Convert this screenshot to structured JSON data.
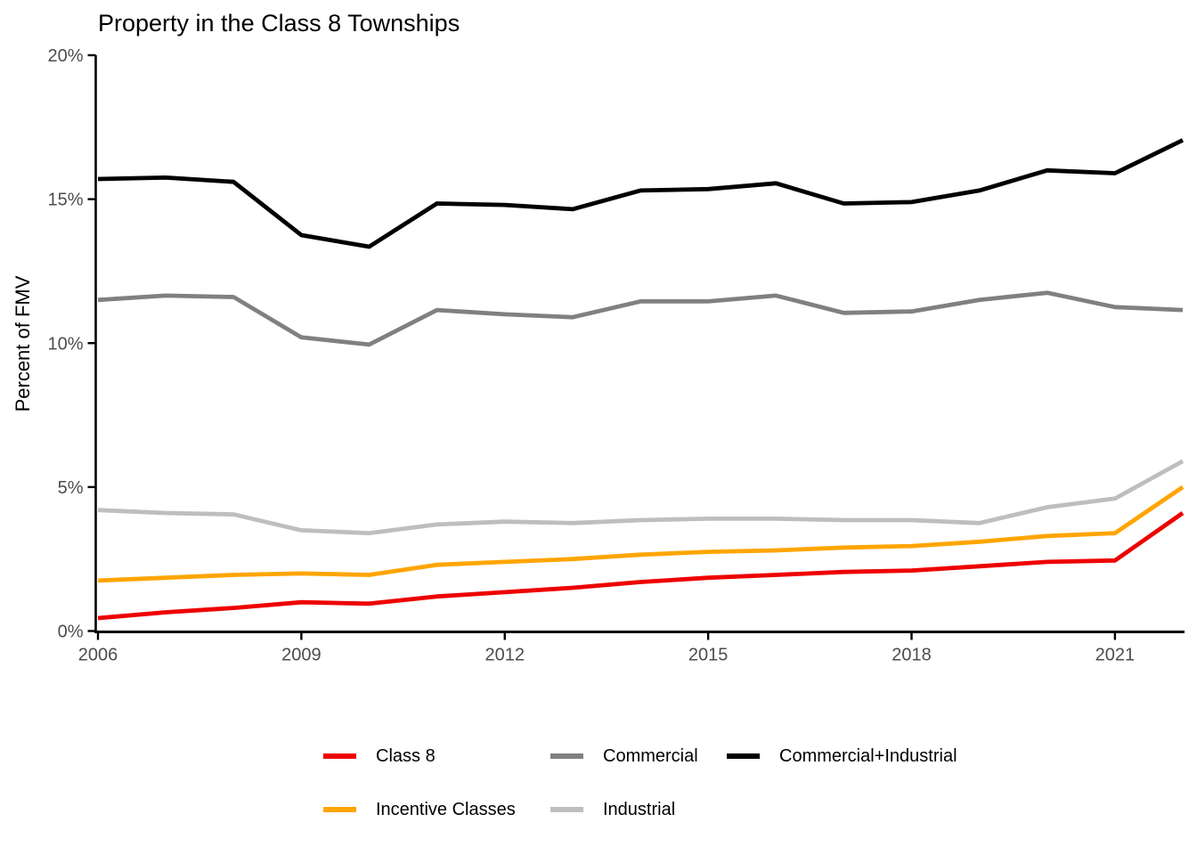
{
  "page": {
    "background": "#ffffff"
  },
  "chart_data": {
    "type": "line",
    "title": "Property in the Class 8 Townships",
    "ylabel": "Percent of FMV",
    "xlabel": "",
    "grid": false,
    "legend_position": "bottom",
    "axis_color": "#000000",
    "tick_label_color": "#4d4d4d",
    "ylim": [
      0,
      20
    ],
    "x": [
      2006,
      2007,
      2008,
      2009,
      2010,
      2011,
      2012,
      2013,
      2014,
      2015,
      2016,
      2017,
      2018,
      2019,
      2020,
      2021,
      2022
    ],
    "y_ticks": {
      "values": [
        0,
        5,
        10,
        15,
        20
      ],
      "labels": [
        "0%",
        "5%",
        "10%",
        "15%",
        "20%"
      ]
    },
    "x_ticks": {
      "values": [
        2006,
        2009,
        2012,
        2015,
        2018,
        2021
      ],
      "labels": [
        "2006",
        "2009",
        "2012",
        "2015",
        "2018",
        "2021"
      ]
    },
    "series": [
      {
        "name": "Class 8",
        "color": "#ee0000",
        "values": [
          0.45,
          0.65,
          0.8,
          1.0,
          0.95,
          1.2,
          1.35,
          1.5,
          1.7,
          1.85,
          1.95,
          2.05,
          2.1,
          2.25,
          2.4,
          2.45,
          4.1
        ]
      },
      {
        "name": "Incentive Classes",
        "color": "#ffa500",
        "values": [
          1.75,
          1.85,
          1.95,
          2.0,
          1.95,
          2.3,
          2.4,
          2.5,
          2.65,
          2.75,
          2.8,
          2.9,
          2.95,
          3.1,
          3.3,
          3.4,
          5.0
        ]
      },
      {
        "name": "Industrial",
        "color": "#bebebe",
        "values": [
          4.2,
          4.1,
          4.05,
          3.5,
          3.4,
          3.7,
          3.8,
          3.75,
          3.85,
          3.9,
          3.9,
          3.85,
          3.85,
          3.75,
          4.3,
          4.6,
          5.9
        ]
      },
      {
        "name": "Commercial",
        "color": "#808080",
        "values": [
          11.5,
          11.65,
          11.6,
          10.2,
          9.95,
          11.15,
          11.0,
          10.9,
          11.45,
          11.45,
          11.65,
          11.05,
          11.1,
          11.5,
          11.75,
          11.25,
          11.15
        ]
      },
      {
        "name": "Commercial+Industrial",
        "color": "#000000",
        "values": [
          15.7,
          15.75,
          15.6,
          13.75,
          13.35,
          14.85,
          14.8,
          14.65,
          15.3,
          15.35,
          15.55,
          14.85,
          14.9,
          15.3,
          16.0,
          15.9,
          17.05
        ]
      }
    ],
    "legend_rows": [
      [
        "Class 8",
        "Commercial",
        "Commercial+Industrial"
      ],
      [
        "Incentive Classes",
        "Industrial"
      ]
    ]
  }
}
